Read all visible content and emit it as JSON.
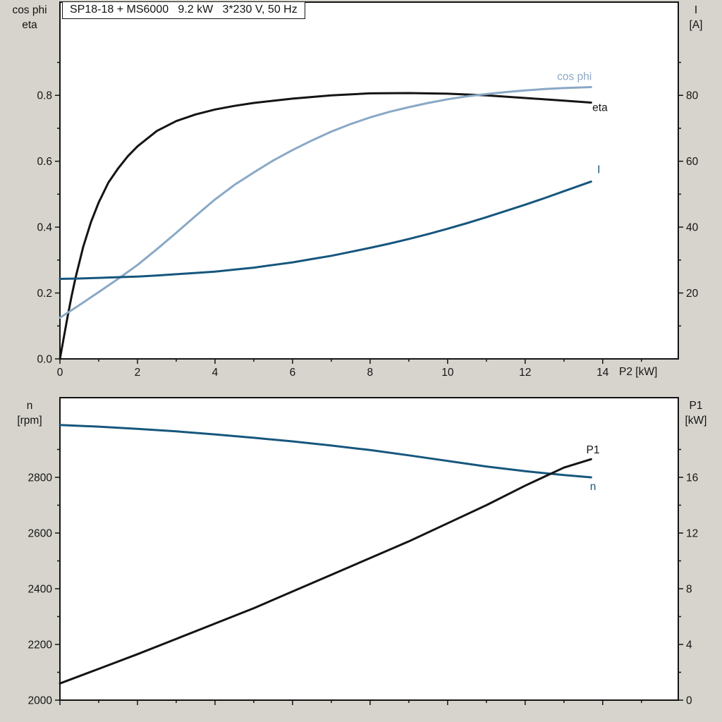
{
  "header": {
    "title_box": "SP18-18 + MS6000   9.2 kW   3*230 V, 50 Hz"
  },
  "colors": {
    "background": "#d7d4cd",
    "plot_bg": "#ffffff",
    "axis": "#141414",
    "black": "#141414",
    "light_blue": "#8aa8c6",
    "dark_blue": "#16567d"
  },
  "chart_data": [
    {
      "type": "line",
      "title": "SP18-18 + MS6000   9.2 kW   3*230 V, 50 Hz",
      "xlabel": "P2 [kW]",
      "ylabel_left_lines": [
        "cos phi",
        "eta"
      ],
      "ylabel_right_lines": [
        "I",
        "[A]"
      ],
      "xlim": [
        0,
        15.95
      ],
      "ylim_left": [
        0,
        1.083
      ],
      "ylim_right": [
        0,
        108.3
      ],
      "grid": false,
      "legend": "inline-labels",
      "axes": {
        "x": {
          "major": [
            0,
            2,
            4,
            6,
            8,
            10,
            12,
            14
          ],
          "labels": [
            "0",
            "2",
            "4",
            "6",
            "8",
            "10",
            "12",
            "14"
          ],
          "minor": [
            1,
            3,
            5,
            7,
            9,
            11,
            13,
            15
          ]
        },
        "left": {
          "major": [
            0,
            0.2,
            0.4,
            0.6,
            0.8
          ],
          "labels": [
            "0.0",
            "0.2",
            "0.4",
            "0.6",
            "0.8"
          ],
          "minor": [
            0.1,
            0.3,
            0.5,
            0.7,
            0.9
          ]
        },
        "right": {
          "major": [
            20,
            40,
            60,
            80
          ],
          "labels": [
            "20",
            "40",
            "60",
            "80"
          ],
          "minor": [
            10,
            30,
            50,
            70,
            90
          ]
        }
      },
      "series": [
        {
          "id": "eta",
          "name": "eta",
          "axis": "left",
          "color": "black",
          "label": {
            "text": "eta",
            "x": 13.93,
            "y": 0.764
          },
          "x": [
            0,
            0.1,
            0.2,
            0.3,
            0.4,
            0.6,
            0.8,
            1,
            1.25,
            1.5,
            1.75,
            2,
            2.5,
            3,
            3.5,
            4,
            4.5,
            5,
            6,
            7,
            8,
            9,
            10,
            11,
            12,
            13,
            13.7
          ],
          "y": [
            0,
            0.065,
            0.13,
            0.19,
            0.245,
            0.34,
            0.415,
            0.475,
            0.535,
            0.578,
            0.615,
            0.645,
            0.692,
            0.722,
            0.742,
            0.757,
            0.768,
            0.777,
            0.79,
            0.8,
            0.806,
            0.807,
            0.805,
            0.8,
            0.792,
            0.784,
            0.778
          ]
        },
        {
          "id": "cos-phi",
          "name": "cos phi",
          "axis": "left",
          "color": "light_blue",
          "label": {
            "text": "cos phi",
            "x": 13.27,
            "y": 0.858
          },
          "x": [
            0,
            0.5,
            1,
            1.5,
            2,
            2.5,
            3,
            3.5,
            4,
            4.5,
            5,
            5.5,
            6,
            6.5,
            7,
            7.5,
            8,
            8.5,
            9,
            9.5,
            10,
            10.5,
            11,
            11.5,
            12,
            12.5,
            13,
            13.7
          ],
          "y": [
            0.125,
            0.163,
            0.203,
            0.243,
            0.285,
            0.333,
            0.383,
            0.434,
            0.484,
            0.528,
            0.566,
            0.602,
            0.634,
            0.663,
            0.69,
            0.713,
            0.733,
            0.75,
            0.764,
            0.777,
            0.788,
            0.797,
            0.804,
            0.81,
            0.815,
            0.819,
            0.822,
            0.825
          ]
        },
        {
          "id": "current",
          "name": "I",
          "axis": "right",
          "color": "dark_blue",
          "label": {
            "text": "I",
            "x": 13.9,
            "y": 57.6
          },
          "x": [
            0,
            0.5,
            1,
            1.5,
            2,
            2.5,
            3,
            3.5,
            4,
            4.5,
            5,
            5.5,
            6,
            6.5,
            7,
            7.5,
            8,
            8.5,
            9,
            9.5,
            10,
            10.5,
            11,
            11.5,
            12,
            12.5,
            13,
            13.7
          ],
          "y": [
            24.3,
            24.4,
            24.6,
            24.8,
            25,
            25.3,
            25.7,
            26.1,
            26.5,
            27.1,
            27.7,
            28.5,
            29.3,
            30.3,
            31.3,
            32.5,
            33.7,
            35,
            36.4,
            37.9,
            39.5,
            41.2,
            43,
            44.9,
            46.8,
            48.8,
            50.9,
            53.8
          ]
        }
      ]
    },
    {
      "type": "line",
      "title": "",
      "xlabel": "",
      "ylabel_left_lines": [
        "n",
        "[rpm]"
      ],
      "ylabel_right_lines": [
        "P1",
        "[kW]"
      ],
      "xlim": [
        0,
        15.95
      ],
      "ylim_left": [
        2000,
        3086
      ],
      "ylim_right": [
        0,
        21.72
      ],
      "grid": false,
      "legend": "inline-labels",
      "axes": {
        "x": {
          "major": [
            0,
            2,
            4,
            6,
            8,
            10,
            12,
            14
          ],
          "labels": [],
          "minor": [
            1,
            3,
            5,
            7,
            9,
            11,
            13,
            15
          ]
        },
        "left": {
          "major": [
            2000,
            2200,
            2400,
            2600,
            2800
          ],
          "labels": [
            "2000",
            "2200",
            "2400",
            "2600",
            "2800"
          ],
          "minor": [
            2100,
            2300,
            2500,
            2700,
            2900
          ]
        },
        "right": {
          "major": [
            0,
            4,
            8,
            12,
            16
          ],
          "labels": [
            "0",
            "4",
            "8",
            "12",
            "16"
          ],
          "minor": [
            2,
            6,
            10,
            14,
            18
          ]
        }
      },
      "series": [
        {
          "id": "speed",
          "name": "n",
          "axis": "left",
          "color": "dark_blue",
          "label": {
            "text": "n",
            "x": 13.75,
            "y": 2768
          },
          "x": [
            0,
            1,
            2,
            3,
            4,
            5,
            6,
            7,
            8,
            9,
            10,
            11,
            12,
            13,
            13.7
          ],
          "y": [
            2988,
            2982,
            2974,
            2965,
            2954,
            2942,
            2929,
            2914,
            2898,
            2879,
            2859,
            2839,
            2822,
            2808,
            2800
          ]
        },
        {
          "id": "p1",
          "name": "P1",
          "axis": "right",
          "color": "black",
          "label": {
            "text": "P1",
            "x": 13.75,
            "y": 18.0
          },
          "x": [
            0,
            1,
            2,
            3,
            4,
            5,
            6,
            7,
            8,
            9,
            10,
            11,
            12,
            13,
            13.7
          ],
          "y": [
            1.2,
            2.25,
            3.3,
            4.4,
            5.5,
            6.6,
            7.8,
            9,
            10.2,
            11.4,
            12.7,
            14,
            15.4,
            16.7,
            17.3
          ]
        }
      ]
    }
  ]
}
